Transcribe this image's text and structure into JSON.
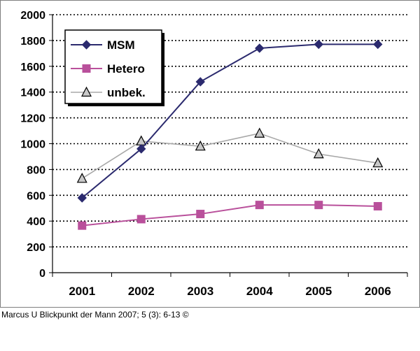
{
  "citation": "Marcus U Blickpunkt der Mann 2007; 5 (3): 6-13 ©",
  "chart_data": {
    "type": "line",
    "title": "",
    "xlabel": "",
    "ylabel": "",
    "categories": [
      "2001",
      "2002",
      "2003",
      "2004",
      "2005",
      "2006"
    ],
    "ylim": [
      0,
      2000
    ],
    "yticks": [
      0,
      200,
      400,
      600,
      800,
      1000,
      1200,
      1400,
      1600,
      1800,
      2000
    ],
    "grid": "horizontal dotted",
    "legend_position": "top-left",
    "series": [
      {
        "name": "MSM",
        "marker": "diamond",
        "color": "#2b2a6e",
        "values": [
          580,
          960,
          1480,
          1740,
          1770,
          1770
        ]
      },
      {
        "name": "Hetero",
        "marker": "square",
        "color": "#b9509b",
        "values": [
          365,
          415,
          455,
          525,
          525,
          515
        ]
      },
      {
        "name": "unbek.",
        "marker": "triangle",
        "color": "#a8a8a8",
        "values": [
          730,
          1020,
          980,
          1080,
          920,
          850
        ]
      }
    ]
  }
}
